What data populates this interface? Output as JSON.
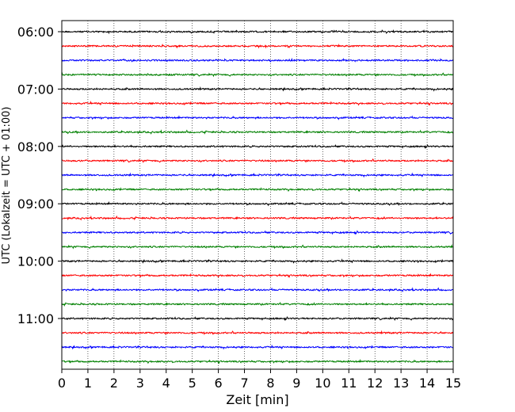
{
  "chart_data": {
    "type": "line",
    "title": "",
    "xlabel": "Zeit  [min]",
    "ylabel": "UTC (Lokalzeit = UTC + 01:00)",
    "xlim": [
      0,
      15
    ],
    "x_ticks": [
      0,
      1,
      2,
      3,
      4,
      5,
      6,
      7,
      8,
      9,
      10,
      11,
      12,
      13,
      14,
      15
    ],
    "x_tick_labels": [
      "0",
      "1",
      "2",
      "3",
      "4",
      "5",
      "6",
      "7",
      "8",
      "9",
      "10",
      "11",
      "12",
      "13",
      "14",
      "15"
    ],
    "y_tick_labels": [
      "06:00",
      "07:00",
      "08:00",
      "09:00",
      "10:00",
      "11:00"
    ],
    "trace_minutes": [
      0,
      15,
      30,
      45
    ],
    "start_utc": "06:00",
    "end_utc": "11:45",
    "trace_count": 24,
    "line_colors": [
      "#000000",
      "#ff0000",
      "#0000ff",
      "#008000"
    ],
    "grid_x": true,
    "grid_style": "dotted",
    "legend": "none"
  }
}
